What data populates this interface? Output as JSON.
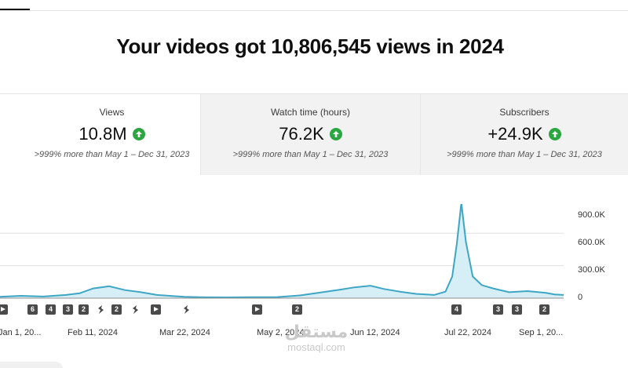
{
  "headline": "Your videos got 10,806,545 views in 2024",
  "metrics": [
    {
      "label": "Views",
      "value": "10.8M",
      "compare": ">999% more than May 1 – Dec 31, 2023",
      "trend": "up"
    },
    {
      "label": "Watch time (hours)",
      "value": "76.2K",
      "compare": ">999% more than May 1 – Dec 31, 2023",
      "trend": "up"
    },
    {
      "label": "Subscribers",
      "value": "+24.9K",
      "compare": ">999% more than May 1 – Dec 31, 2023",
      "trend": "up"
    }
  ],
  "colors": {
    "line": "#3ea6c4",
    "fill": "#d6eef5",
    "up": "#2ba640",
    "marker": "#4a4a4a",
    "grid": "#e0e0e0"
  },
  "markers": [
    {
      "kind": "play",
      "label": ""
    },
    {
      "kind": "number",
      "label": "6"
    },
    {
      "kind": "number",
      "label": "4"
    },
    {
      "kind": "number",
      "label": "3"
    },
    {
      "kind": "number",
      "label": "2"
    },
    {
      "kind": "shorts",
      "label": "S"
    },
    {
      "kind": "number",
      "label": "2"
    },
    {
      "kind": "shorts",
      "label": "S"
    },
    {
      "kind": "play",
      "label": ""
    },
    {
      "kind": "shorts",
      "label": "S"
    },
    {
      "kind": "play",
      "label": ""
    },
    {
      "kind": "number",
      "label": "2"
    },
    {
      "kind": "number",
      "label": "4"
    },
    {
      "kind": "number",
      "label": "3"
    },
    {
      "kind": "number",
      "label": "3"
    },
    {
      "kind": "number",
      "label": "2"
    }
  ],
  "watermark": {
    "logo": "مستقل",
    "url": "mostaql.com"
  },
  "chart_data": {
    "type": "area",
    "title": "",
    "xlabel": "",
    "ylabel": "",
    "x_tick_labels": [
      "Jan 1, 20...",
      "Feb 11, 2024",
      "Mar 22, 2024",
      "May 2, 2024",
      "Jun 12, 2024",
      "Jul 22, 2024",
      "Sep 1, 20..."
    ],
    "y_tick_labels": [
      "900.0K",
      "600.0K",
      "300.0K",
      "0"
    ],
    "ylim": [
      0,
      1000000
    ],
    "grid": true,
    "series": [
      {
        "x": [
          "2024-01-01",
          "2024-01-10",
          "2024-01-20",
          "2024-01-30",
          "2024-02-05",
          "2024-02-11",
          "2024-02-18",
          "2024-02-25",
          "2024-03-03",
          "2024-03-10",
          "2024-03-22",
          "2024-04-01",
          "2024-04-10",
          "2024-04-20",
          "2024-05-02",
          "2024-05-12",
          "2024-05-22",
          "2024-05-30",
          "2024-06-05",
          "2024-06-12",
          "2024-06-18",
          "2024-06-25",
          "2024-07-02",
          "2024-07-10",
          "2024-07-15",
          "2024-07-18",
          "2024-07-20",
          "2024-07-22",
          "2024-07-24",
          "2024-07-27",
          "2024-07-31",
          "2024-08-05",
          "2024-08-12",
          "2024-08-20",
          "2024-08-28",
          "2024-09-01",
          "2024-09-05"
        ],
        "values": [
          12000,
          22000,
          15000,
          30000,
          45000,
          90000,
          110000,
          75000,
          55000,
          30000,
          12000,
          8000,
          7000,
          9000,
          10000,
          25000,
          55000,
          80000,
          100000,
          115000,
          85000,
          60000,
          40000,
          30000,
          60000,
          200000,
          500000,
          880000,
          520000,
          200000,
          120000,
          90000,
          55000,
          65000,
          50000,
          35000,
          30000
        ]
      }
    ]
  }
}
